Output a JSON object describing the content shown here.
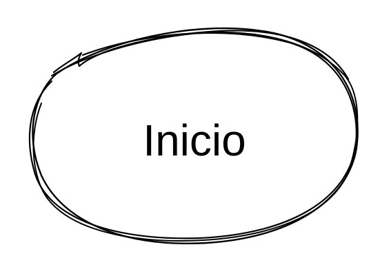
{
  "node": {
    "label": "Inicio",
    "shape": "hand-drawn-ellipse",
    "stroke_color": "#000000",
    "fill_color": "#ffffff",
    "text_color": "#000000"
  }
}
